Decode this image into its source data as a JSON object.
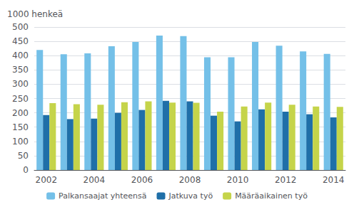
{
  "chart_data": {
    "type": "bar",
    "ylabel": "1000 henkeä",
    "categories": [
      "2002",
      null,
      "2004",
      null,
      "2006",
      null,
      "2008",
      null,
      "2010",
      null,
      "2012",
      null,
      "2014"
    ],
    "series": [
      {
        "name": "Palkansaajat yhteensä",
        "color": "#74c0e8",
        "values": [
          420,
          405,
          408,
          433,
          448,
          470,
          468,
          394,
          394,
          448,
          435,
          415,
          406
        ]
      },
      {
        "name": "Jatkuva työ",
        "color": "#1f6fa8",
        "values": [
          192,
          178,
          180,
          200,
          210,
          242,
          240,
          190,
          170,
          212,
          204,
          195,
          184
        ]
      },
      {
        "name": "Määräaikainen työ",
        "color": "#c5d44a",
        "values": [
          234,
          230,
          228,
          237,
          240,
          236,
          235,
          204,
          222,
          236,
          228,
          222,
          221
        ]
      }
    ],
    "ylim": [
      0,
      500
    ],
    "yticks": [
      0,
      50,
      100,
      150,
      200,
      250,
      300,
      350,
      400,
      450,
      500
    ],
    "grid": true,
    "legend": "bottom"
  }
}
